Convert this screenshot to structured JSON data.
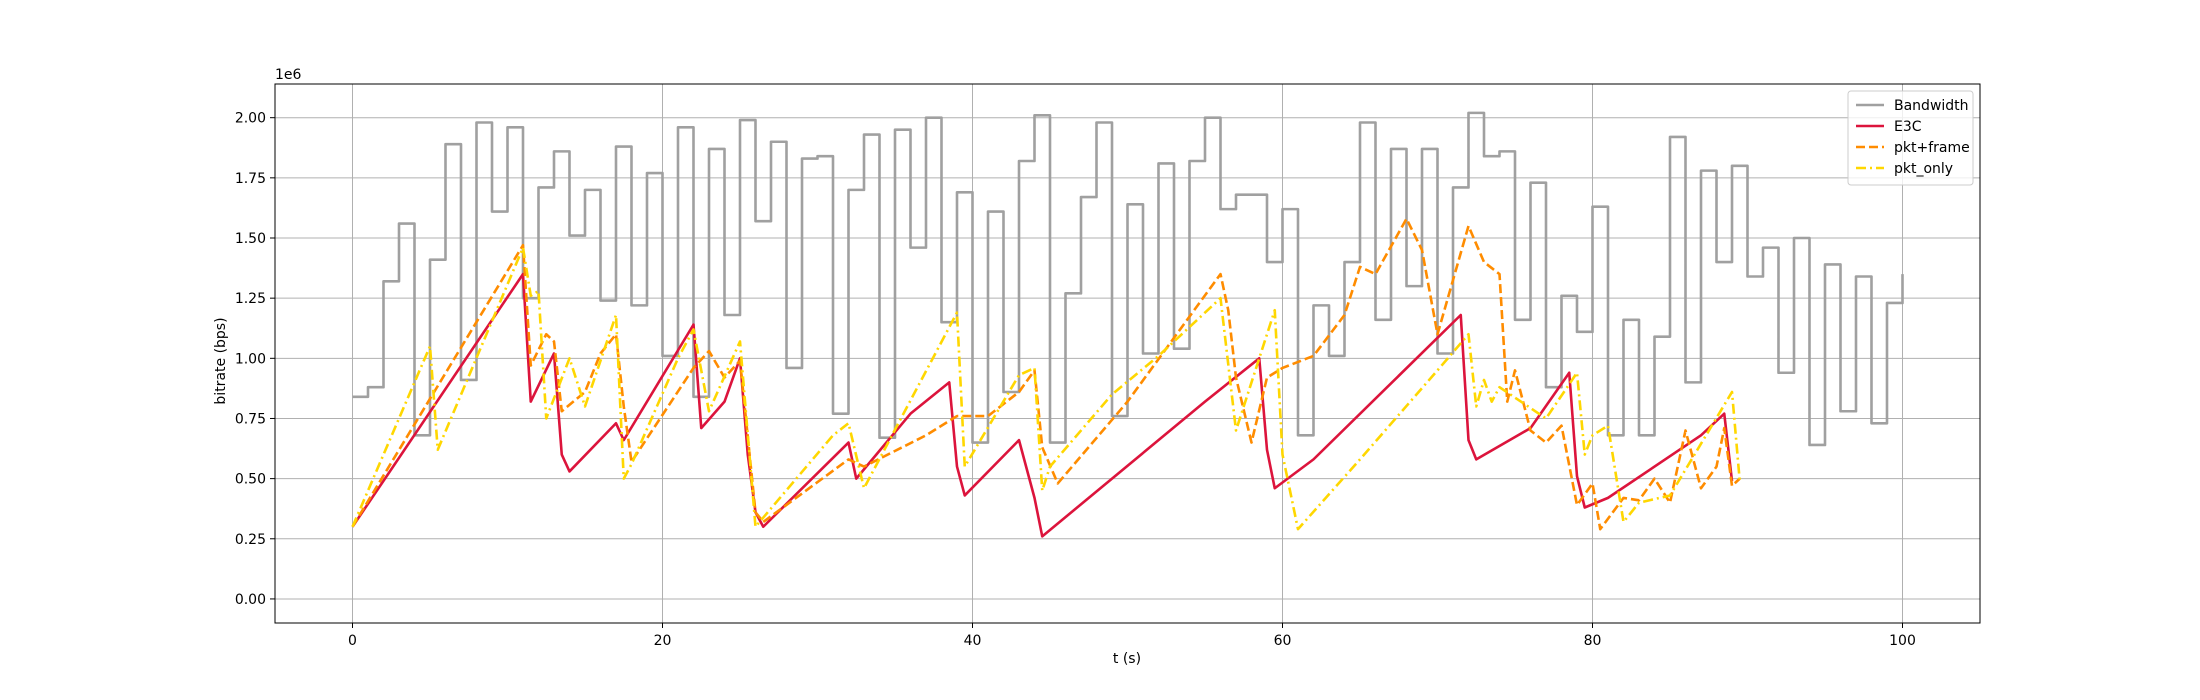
{
  "chart_data": {
    "type": "line",
    "x_label": "t (s)",
    "y_label": "bitrate (bps)",
    "y_offset_label": "1e6",
    "xlim": [
      -5,
      105
    ],
    "ylim": [
      -0.1,
      2.14
    ],
    "xticks": [
      0,
      20,
      40,
      60,
      80,
      100
    ],
    "yticks": [
      {
        "value": 0,
        "label": "0.00"
      },
      0.25,
      {
        "value": 0.5,
        "label": "0.50"
      },
      0.75,
      {
        "value": 1,
        "label": "1.00"
      },
      1.25,
      {
        "value": 1.5,
        "label": "1.50"
      },
      1.75,
      {
        "value": 2,
        "label": "2.00"
      }
    ],
    "grid": true,
    "legend": "upper right",
    "series": [
      {
        "name": "Bandwidth",
        "color": "#a0a0a0",
        "linestyle": "solid",
        "drawstyle": "steps-post",
        "x": [
          0,
          1,
          2,
          3,
          4,
          5,
          6,
          7,
          8,
          9,
          10,
          11,
          12,
          13,
          14,
          15,
          16,
          17,
          18,
          19,
          20,
          21,
          22,
          23,
          24,
          25,
          26,
          27,
          28,
          29,
          30,
          31,
          32,
          33,
          34,
          35,
          36,
          37,
          38,
          39,
          40,
          41,
          42,
          43,
          44,
          45,
          46,
          47,
          48,
          49,
          50,
          51,
          52,
          53,
          54,
          55,
          56,
          57,
          58,
          59,
          60,
          61,
          62,
          63,
          64,
          65,
          66,
          67,
          68,
          69,
          70,
          71,
          72,
          73,
          74,
          75,
          76,
          77,
          78,
          79,
          80,
          81,
          82,
          83,
          84,
          85,
          86,
          87,
          88,
          89,
          90,
          91,
          92,
          93,
          94,
          95,
          96,
          97,
          98,
          99,
          100
        ],
        "values": [
          0.84,
          0.88,
          1.32,
          1.56,
          0.68,
          1.41,
          1.89,
          0.91,
          1.98,
          1.61,
          1.96,
          1.25,
          1.71,
          1.86,
          1.51,
          1.7,
          1.24,
          1.88,
          1.22,
          1.77,
          1.01,
          1.96,
          0.84,
          1.87,
          1.18,
          1.99,
          1.57,
          1.9,
          0.96,
          1.83,
          1.84,
          0.77,
          1.7,
          1.93,
          0.67,
          1.95,
          1.46,
          2.0,
          1.15,
          1.69,
          0.65,
          1.61,
          0.86,
          1.82,
          2.01,
          0.65,
          1.27,
          1.67,
          1.98,
          0.76,
          1.64,
          1.02,
          1.81,
          1.04,
          1.82,
          2.0,
          1.62,
          1.68,
          1.68,
          1.4,
          1.62,
          0.68,
          1.22,
          1.01,
          1.4,
          1.98,
          1.16,
          1.87,
          1.3,
          1.87,
          1.02,
          1.71,
          2.02,
          1.84,
          1.86,
          1.16,
          1.73,
          0.88,
          1.26,
          1.11,
          1.63,
          0.68,
          1.16,
          0.68,
          1.09,
          1.92,
          0.9,
          1.78,
          1.4,
          1.8,
          1.34,
          1.46,
          0.94,
          1.5,
          0.64,
          1.39,
          0.78,
          1.34,
          0.73,
          1.23,
          1.35
        ]
      },
      {
        "name": "E3C",
        "color": "#dc143c",
        "linestyle": "solid",
        "x": [
          0,
          11,
          11.5,
          13,
          13.5,
          14,
          17,
          17.5,
          22,
          22.5,
          24,
          25,
          25.5,
          26,
          26.5,
          32,
          32.5,
          36,
          38.5,
          39,
          39.5,
          43,
          44,
          44.5,
          55,
          58.5,
          59,
          59.5,
          62,
          71.5,
          72,
          72.5,
          76,
          78.5,
          79,
          79.5,
          81,
          87,
          88.5,
          89
        ],
        "values": [
          0.3,
          1.35,
          0.82,
          1.02,
          0.6,
          0.53,
          0.73,
          0.66,
          1.14,
          0.71,
          0.82,
          1.0,
          0.6,
          0.36,
          0.3,
          0.65,
          0.5,
          0.77,
          0.9,
          0.55,
          0.43,
          0.66,
          0.42,
          0.26,
          0.82,
          1.0,
          0.62,
          0.46,
          0.58,
          1.18,
          0.66,
          0.58,
          0.71,
          0.94,
          0.51,
          0.38,
          0.42,
          0.68,
          0.77,
          0.49
        ]
      },
      {
        "name": "pkt+frame",
        "color": "#ff8c00",
        "linestyle": "dashed",
        "x": [
          0,
          11,
          11.5,
          12.5,
          13,
          13.5,
          15,
          16,
          17,
          17.5,
          18,
          22,
          23,
          24,
          25,
          26,
          26.5,
          32,
          33,
          37,
          39,
          41,
          43,
          44,
          44.5,
          45.5,
          50,
          56,
          56.5,
          57,
          58,
          59,
          60,
          62,
          64,
          65,
          66,
          68,
          69,
          70,
          72,
          73,
          74,
          74.5,
          75,
          76,
          77,
          78,
          79,
          80,
          80.5,
          82,
          83,
          84,
          85,
          86,
          87,
          88,
          88.5,
          89,
          89.5
        ],
        "values": [
          0.3,
          1.47,
          0.97,
          1.1,
          1.07,
          0.78,
          0.86,
          1.02,
          1.1,
          0.8,
          0.57,
          0.96,
          1.03,
          0.92,
          0.99,
          0.36,
          0.32,
          0.58,
          0.55,
          0.68,
          0.76,
          0.76,
          0.86,
          0.95,
          0.63,
          0.48,
          0.82,
          1.35,
          1.2,
          0.92,
          0.65,
          0.92,
          0.96,
          1.01,
          1.18,
          1.38,
          1.35,
          1.58,
          1.45,
          1.1,
          1.55,
          1.4,
          1.35,
          0.82,
          0.95,
          0.7,
          0.65,
          0.72,
          0.39,
          0.48,
          0.29,
          0.42,
          0.41,
          0.5,
          0.4,
          0.7,
          0.46,
          0.55,
          0.71,
          0.47,
          0.5
        ]
      },
      {
        "name": "pkt_only",
        "color": "#ffd700",
        "linestyle": "dashdot",
        "x": [
          0,
          5,
          5.5,
          11,
          11.5,
          12,
          12.5,
          14,
          15,
          17,
          17.5,
          18,
          21,
          22,
          23,
          25,
          26,
          31,
          32,
          33,
          39,
          39.5,
          43,
          44,
          44.5,
          45,
          49,
          52,
          56,
          57,
          59.5,
          60,
          61,
          65,
          70,
          72,
          72.5,
          73,
          73.5,
          74,
          77,
          79,
          79.5,
          80,
          81,
          82,
          83,
          85,
          89,
          89.5
        ],
        "values": [
          0.3,
          1.05,
          0.62,
          1.46,
          1.26,
          1.28,
          0.75,
          1.0,
          0.8,
          1.18,
          0.5,
          0.56,
          1.0,
          1.12,
          0.78,
          1.07,
          0.3,
          0.68,
          0.73,
          0.46,
          1.19,
          0.55,
          0.93,
          0.96,
          0.45,
          0.55,
          0.85,
          1.01,
          1.25,
          0.7,
          1.2,
          0.6,
          0.29,
          0.58,
          0.95,
          1.1,
          0.8,
          0.91,
          0.82,
          0.88,
          0.75,
          0.94,
          0.6,
          0.68,
          0.72,
          0.32,
          0.4,
          0.43,
          0.86,
          0.49
        ]
      }
    ]
  }
}
